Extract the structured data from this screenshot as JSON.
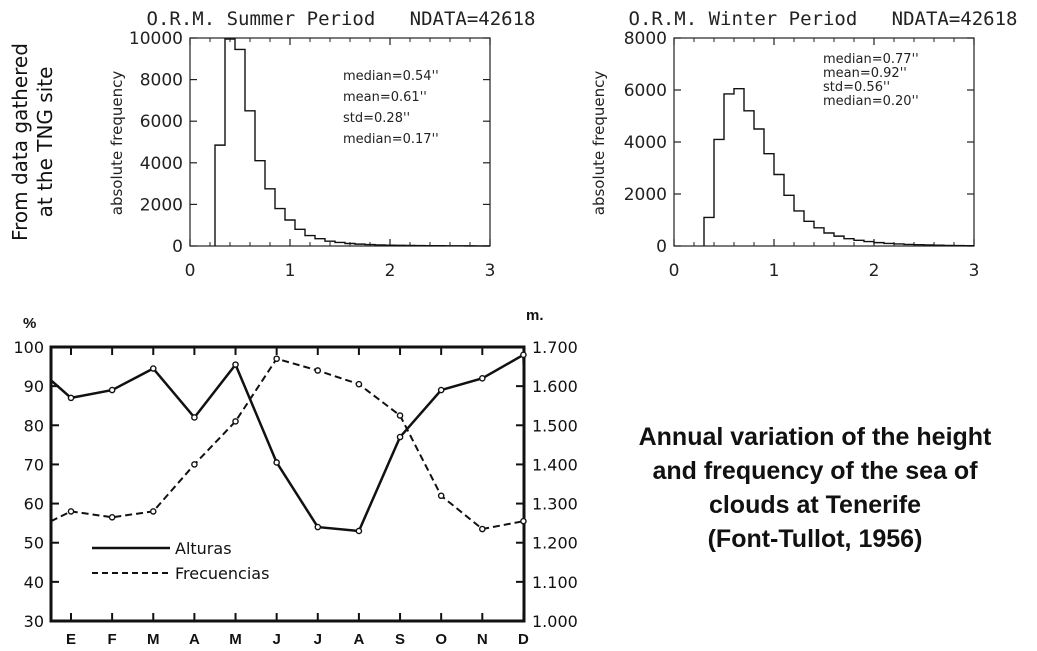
{
  "side_note": [
    "From data gathered",
    "at the TNG site"
  ],
  "caption": {
    "lines": [
      "Annual variation of the height",
      "and frequency of the sea of",
      "clouds at Tenerife",
      "(Font-Tullot, 1956)"
    ]
  },
  "chart_data": [
    {
      "type": "bar",
      "title": "O.R.M. Summer Period   NDATA=42618",
      "xlabel": "",
      "ylabel": "absolute frequency",
      "xlim": [
        0,
        3
      ],
      "ylim": [
        0,
        10000
      ],
      "xticks": [
        "0",
        "1",
        "2",
        "3"
      ],
      "yticks": [
        "0",
        "2000",
        "4000",
        "6000",
        "8000",
        "10000"
      ],
      "bin_edges": [
        0.25,
        0.35,
        0.45,
        0.55,
        0.65,
        0.75,
        0.85,
        0.95,
        1.05,
        1.15,
        1.25,
        1.35,
        1.45,
        1.55,
        1.65,
        1.75,
        1.85,
        1.95,
        2.05,
        2.15,
        2.25,
        2.35,
        2.45,
        2.55,
        2.65,
        2.75,
        2.85,
        2.95,
        3.0
      ],
      "values": [
        4850,
        9950,
        9450,
        6500,
        4100,
        2750,
        1800,
        1250,
        800,
        500,
        350,
        230,
        170,
        120,
        90,
        70,
        50,
        40,
        30,
        25,
        20,
        15,
        12,
        10,
        8,
        6,
        5,
        4
      ],
      "stats": [
        "median=0.54''",
        "mean=0.61''",
        "std=0.28''",
        "median=0.17''"
      ]
    },
    {
      "type": "bar",
      "title": "O.R.M. Winter Period   NDATA=42618",
      "xlabel": "",
      "ylabel": "absolute frequency",
      "xlim": [
        0,
        3
      ],
      "ylim": [
        0,
        8000
      ],
      "xticks": [
        "0",
        "1",
        "2",
        "3"
      ],
      "yticks": [
        "0",
        "2000",
        "4000",
        "6000",
        "8000"
      ],
      "bin_edges": [
        0.3,
        0.4,
        0.5,
        0.6,
        0.7,
        0.8,
        0.9,
        1.0,
        1.1,
        1.2,
        1.3,
        1.4,
        1.5,
        1.6,
        1.7,
        1.8,
        1.9,
        2.0,
        2.1,
        2.2,
        2.3,
        2.4,
        2.5,
        2.6,
        2.7,
        2.8,
        2.9,
        3.0
      ],
      "values": [
        1100,
        4100,
        5850,
        6050,
        5200,
        4500,
        3550,
        2750,
        1950,
        1350,
        950,
        700,
        500,
        380,
        280,
        220,
        170,
        130,
        100,
        80,
        60,
        50,
        40,
        30,
        20,
        15,
        10
      ],
      "stats": [
        "median=0.77''",
        "mean=0.92''",
        "std=0.56''",
        "median=0.20''"
      ]
    },
    {
      "type": "line",
      "title": "",
      "categories": [
        "E",
        "F",
        "M",
        "A",
        "M",
        "J",
        "J",
        "A",
        "S",
        "O",
        "N",
        "D"
      ],
      "y_left_label": "%",
      "y_right_label": "m.",
      "ylim_left": [
        30,
        100
      ],
      "yticks_left": [
        "30",
        "40",
        "50",
        "60",
        "70",
        "80",
        "90",
        "100"
      ],
      "ylim_right": [
        1.0,
        1.7
      ],
      "yticks_right": [
        "1.000",
        "1.100",
        "1.200",
        "1.300",
        "1.400",
        "1.500",
        "1.600",
        "1.700"
      ],
      "series": [
        {
          "name": "Alturas",
          "style": "solid",
          "axis": "right",
          "edge_start": 1.615,
          "values": [
            1.57,
            1.59,
            1.645,
            1.52,
            1.655,
            1.405,
            1.24,
            1.23,
            1.47,
            1.59,
            1.62,
            1.68
          ],
          "edge_end": 1.63
        },
        {
          "name": "Frecuencias",
          "style": "dashed",
          "axis": "left",
          "edge_start": 55.5,
          "values": [
            58,
            56.5,
            58,
            70,
            81,
            97,
            94,
            90.5,
            82.5,
            62,
            53.5,
            55.5
          ],
          "edge_end": 56.5
        }
      ]
    }
  ]
}
